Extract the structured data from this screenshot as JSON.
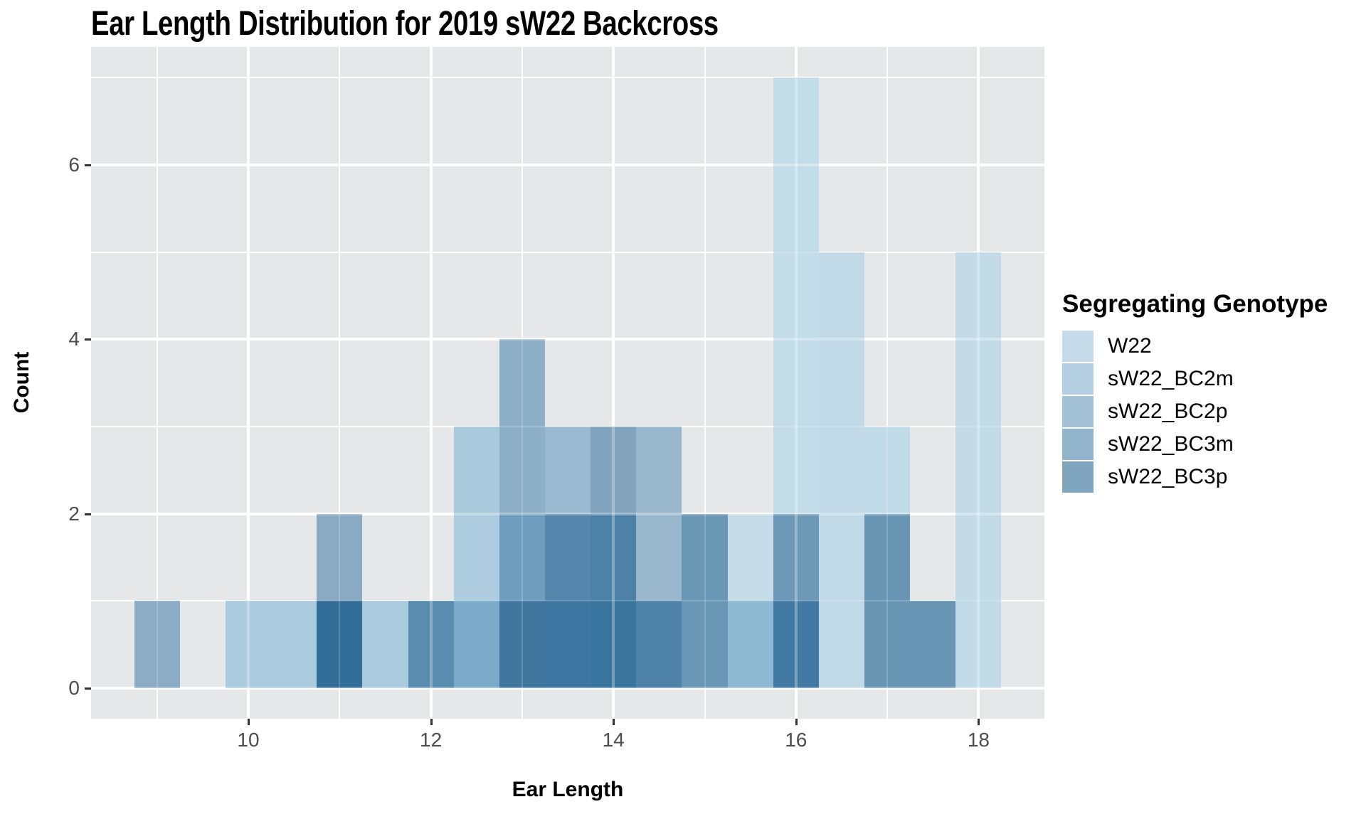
{
  "chart": {
    "title": "Ear Length Distribution for 2019 sW22 Backcross",
    "x_axis": {
      "label": "Ear Length",
      "ticks": [
        10,
        12,
        14,
        16,
        18
      ],
      "minor_ticks": [
        9,
        11,
        13,
        15,
        17
      ]
    },
    "y_axis": {
      "label": "Count",
      "ticks": [
        0,
        2,
        4,
        6
      ],
      "minor_ticks": [
        1,
        3,
        5,
        7
      ]
    },
    "legend": {
      "title": "Segregating Genotype",
      "items": [
        {
          "label": "W22",
          "color": "#c7dcea"
        },
        {
          "label": "sW22_BC2m",
          "color": "#b5d0e2"
        },
        {
          "label": "sW22_BC2p",
          "color": "#a3c2d8"
        },
        {
          "label": "sW22_BC3m",
          "color": "#92b4cd"
        },
        {
          "label": "sW22_BC3p",
          "color": "#80a5c1"
        }
      ]
    }
  },
  "chart_data": {
    "type": "bar",
    "subtype": "overlaid-histogram-with-alpha",
    "title": "Ear Length Distribution for 2019 sW22 Backcross",
    "xlabel": "Ear Length",
    "ylabel": "Count",
    "binwidth": 0.5,
    "xlim": [
      8.275,
      18.725
    ],
    "ylim": [
      -0.35,
      7.35
    ],
    "grid": "on",
    "legend_position": "right",
    "series": [
      "W22",
      "sW22_BC2m",
      "sW22_BC2p",
      "sW22_BC3m",
      "sW22_BC3p"
    ],
    "bins": [
      {
        "center": 9.0,
        "total": 1,
        "segments": [
          {
            "from": 0,
            "to": 1,
            "color": "#8cabc4"
          }
        ]
      },
      {
        "center": 9.5,
        "total": 0,
        "segments": []
      },
      {
        "center": 10.0,
        "total": 1,
        "segments": [
          {
            "from": 0,
            "to": 1,
            "color": "#abcbdf"
          }
        ]
      },
      {
        "center": 10.5,
        "total": 1,
        "segments": [
          {
            "from": 0,
            "to": 1,
            "color": "#abcbdf"
          }
        ]
      },
      {
        "center": 11.0,
        "total": 2,
        "segments": [
          {
            "from": 0,
            "to": 1,
            "color": "#336e99"
          },
          {
            "from": 1,
            "to": 2,
            "color": "#8aaac4"
          }
        ]
      },
      {
        "center": 11.5,
        "total": 1,
        "segments": [
          {
            "from": 0,
            "to": 1,
            "color": "#aacade"
          }
        ]
      },
      {
        "center": 12.0,
        "total": 1,
        "segments": [
          {
            "from": 0,
            "to": 1,
            "color": "#5a8cb0"
          }
        ]
      },
      {
        "center": 12.5,
        "total": 3,
        "segments": [
          {
            "from": 0,
            "to": 1,
            "color": "#7cabc9"
          },
          {
            "from": 1,
            "to": 2,
            "color": "#aecde0"
          },
          {
            "from": 2,
            "to": 3,
            "color": "#a9cadd"
          }
        ]
      },
      {
        "center": 13.0,
        "total": 4,
        "segments": [
          {
            "from": 0,
            "to": 1,
            "color": "#40769d"
          },
          {
            "from": 1,
            "to": 2,
            "color": "#6f9dbd"
          },
          {
            "from": 2,
            "to": 4,
            "color": "#8dafc7"
          }
        ]
      },
      {
        "center": 13.5,
        "total": 3,
        "segments": [
          {
            "from": 0,
            "to": 1,
            "color": "#3c76a0"
          },
          {
            "from": 1,
            "to": 2,
            "color": "#5587ac"
          },
          {
            "from": 2,
            "to": 3,
            "color": "#98b9cf"
          }
        ]
      },
      {
        "center": 14.0,
        "total": 3,
        "segments": [
          {
            "from": 0,
            "to": 1,
            "color": "#38749e"
          },
          {
            "from": 1,
            "to": 2,
            "color": "#4e81a7"
          },
          {
            "from": 2,
            "to": 3,
            "color": "#82a3bd"
          }
        ]
      },
      {
        "center": 14.5,
        "total": 3,
        "segments": [
          {
            "from": 0,
            "to": 1,
            "color": "#4e82a8"
          },
          {
            "from": 1,
            "to": 3,
            "color": "#9ab8cd"
          }
        ]
      },
      {
        "center": 15.0,
        "total": 2,
        "segments": [
          {
            "from": 0,
            "to": 2,
            "color": "#6b97b6"
          }
        ]
      },
      {
        "center": 15.5,
        "total": 2,
        "segments": [
          {
            "from": 0,
            "to": 1,
            "color": "#8fb8d3"
          },
          {
            "from": 1,
            "to": 2,
            "color": "#c6dde9"
          }
        ]
      },
      {
        "center": 16.0,
        "total": 7,
        "segments": [
          {
            "from": 0,
            "to": 1,
            "color": "#427aa3"
          },
          {
            "from": 1,
            "to": 2,
            "color": "#6d98b7"
          },
          {
            "from": 2,
            "to": 7,
            "color": "#c3dce9"
          }
        ]
      },
      {
        "center": 16.5,
        "total": 5,
        "segments": [
          {
            "from": 0,
            "to": 5,
            "color": "#c2dae7"
          }
        ]
      },
      {
        "center": 17.0,
        "total": 3,
        "segments": [
          {
            "from": 0,
            "to": 2,
            "color": "#6a96b5"
          },
          {
            "from": 2,
            "to": 3,
            "color": "#c2dbe8"
          }
        ]
      },
      {
        "center": 17.5,
        "total": 1,
        "segments": [
          {
            "from": 0,
            "to": 1,
            "color": "#6a96b5"
          }
        ]
      },
      {
        "center": 18.0,
        "total": 5,
        "segments": [
          {
            "from": 0,
            "to": 5,
            "color": "#c3dbe8"
          }
        ]
      }
    ]
  },
  "style": {
    "panel_bg": "#e6e7e8",
    "grid_color": "#ffffff",
    "tick_mark_color": "#333333",
    "tick_label_color": "#4d4d4d",
    "title_color": "#000000"
  }
}
